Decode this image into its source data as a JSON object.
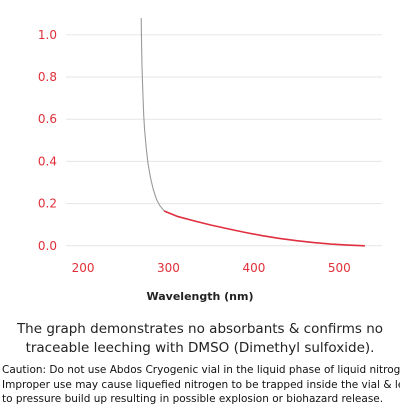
{
  "colors": {
    "background": "#ffffff",
    "tick_label": "#e0303a",
    "grid": "#e6e6e6",
    "curve_gray": "#9a9a9a",
    "curve_red": "#e03040",
    "text": "#222222"
  },
  "chart_data": {
    "type": "line",
    "title": "",
    "xlabel": "Wavelength (nm)",
    "ylabel": "",
    "xlim": [
      180,
      550
    ],
    "ylim": [
      -0.02,
      1.08
    ],
    "xticks": [
      200,
      300,
      400,
      500
    ],
    "yticks": [
      0.0,
      0.2,
      0.4,
      0.6,
      0.8,
      1.0
    ],
    "xtick_labels": [
      "200",
      "300",
      "400",
      "500"
    ],
    "ytick_labels": [
      "0.0",
      "0.2",
      "0.4",
      "0.6",
      "0.8",
      "1.0"
    ],
    "grid": "horizontal",
    "series": [
      {
        "color": "gray",
        "x": [
          268,
          268.5,
          269,
          270,
          271,
          272,
          274,
          276,
          279,
          282,
          286,
          290,
          295
        ],
        "y": [
          1.08,
          0.95,
          0.85,
          0.72,
          0.62,
          0.55,
          0.46,
          0.39,
          0.32,
          0.27,
          0.22,
          0.19,
          0.165
        ]
      },
      {
        "color": "red",
        "x": [
          295,
          310,
          330,
          350,
          370,
          390,
          410,
          430,
          450,
          470,
          490,
          510,
          530
        ],
        "y": [
          0.165,
          0.14,
          0.118,
          0.098,
          0.08,
          0.063,
          0.048,
          0.035,
          0.024,
          0.015,
          0.008,
          0.003,
          0.0
        ]
      }
    ]
  },
  "caption": "The graph demonstrates no absorbants & confirms no traceable leeching with DMSO (Dimethyl sulfoxide).",
  "caution_lines": [
    "Caution: Do not use Abdos Cryogenic vial in the liquid phase of liquid nitrogen.",
    "Improper use may cause liquefied nitrogen to be trapped inside the vial & lead",
    "to pressure build up resulting in possible explosion or biohazard release."
  ]
}
